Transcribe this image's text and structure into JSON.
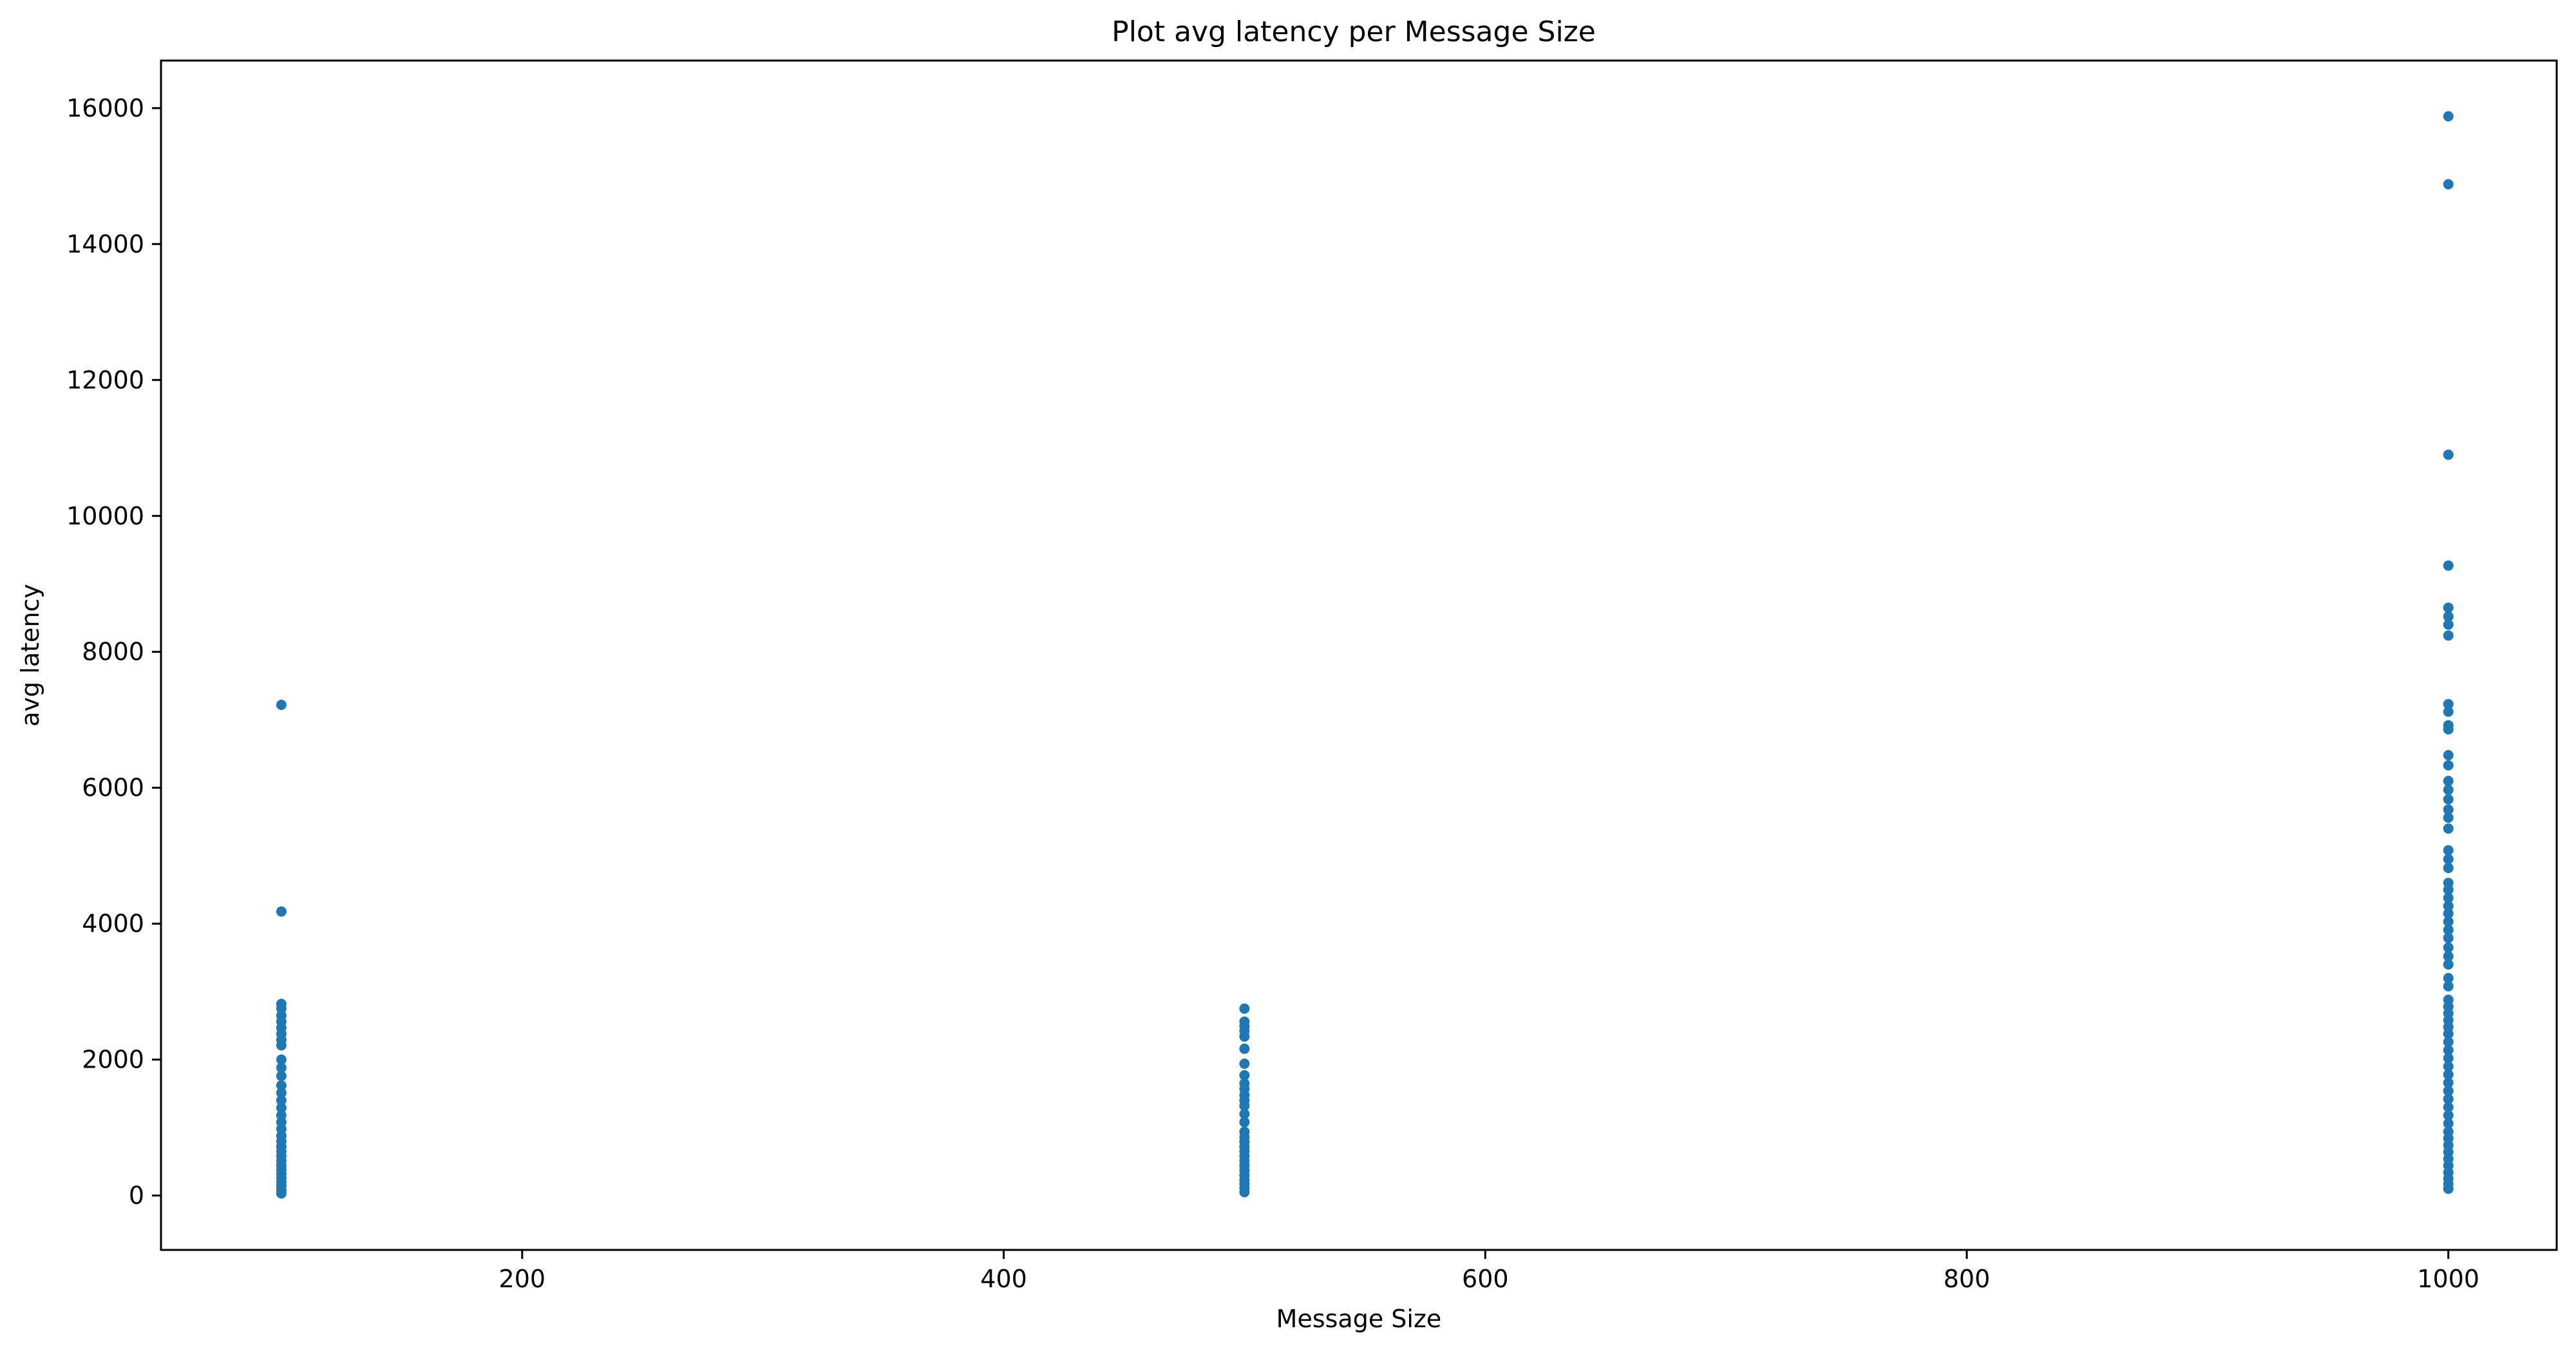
{
  "chart_data": {
    "type": "scatter",
    "title": "Plot avg latency per Message Size",
    "xlabel": "Message Size",
    "ylabel": "avg latency",
    "xlim": [
      50,
      1045
    ],
    "ylim": [
      -800,
      16700
    ],
    "xticks": [
      200,
      400,
      600,
      800,
      1000
    ],
    "xtick_labels": [
      "200",
      "400",
      "600",
      "800",
      "1000"
    ],
    "yticks": [
      0,
      2000,
      4000,
      6000,
      8000,
      10000,
      12000,
      14000,
      16000
    ],
    "ytick_labels": [
      "0",
      "2000",
      "4000",
      "6000",
      "8000",
      "10000",
      "12000",
      "14000",
      "16000"
    ],
    "grid": false,
    "color": "#1f77b4",
    "series": [
      {
        "points": [
          {
            "x": 100,
            "y": 7220
          },
          {
            "x": 100,
            "y": 4180
          },
          {
            "x": 100,
            "y": 2820
          },
          {
            "x": 100,
            "y": 2750
          },
          {
            "x": 100,
            "y": 2650
          },
          {
            "x": 100,
            "y": 2560
          },
          {
            "x": 100,
            "y": 2470
          },
          {
            "x": 100,
            "y": 2380
          },
          {
            "x": 100,
            "y": 2290
          },
          {
            "x": 100,
            "y": 2210
          },
          {
            "x": 100,
            "y": 2000
          },
          {
            "x": 100,
            "y": 1880
          },
          {
            "x": 100,
            "y": 1760
          },
          {
            "x": 100,
            "y": 1620
          },
          {
            "x": 100,
            "y": 1510
          },
          {
            "x": 100,
            "y": 1400
          },
          {
            "x": 100,
            "y": 1290
          },
          {
            "x": 100,
            "y": 1180
          },
          {
            "x": 100,
            "y": 1080
          },
          {
            "x": 100,
            "y": 980
          },
          {
            "x": 100,
            "y": 880
          },
          {
            "x": 100,
            "y": 800
          },
          {
            "x": 100,
            "y": 720
          },
          {
            "x": 100,
            "y": 650
          },
          {
            "x": 100,
            "y": 580
          },
          {
            "x": 100,
            "y": 510
          },
          {
            "x": 100,
            "y": 440
          },
          {
            "x": 100,
            "y": 380
          },
          {
            "x": 100,
            "y": 320
          },
          {
            "x": 100,
            "y": 260
          },
          {
            "x": 100,
            "y": 200
          },
          {
            "x": 100,
            "y": 140
          },
          {
            "x": 100,
            "y": 80
          },
          {
            "x": 100,
            "y": 30
          },
          {
            "x": 500,
            "y": 2750
          },
          {
            "x": 500,
            "y": 2560
          },
          {
            "x": 500,
            "y": 2490
          },
          {
            "x": 500,
            "y": 2420
          },
          {
            "x": 500,
            "y": 2340
          },
          {
            "x": 500,
            "y": 2160
          },
          {
            "x": 500,
            "y": 1940
          },
          {
            "x": 500,
            "y": 1770
          },
          {
            "x": 500,
            "y": 1650
          },
          {
            "x": 500,
            "y": 1570
          },
          {
            "x": 500,
            "y": 1480
          },
          {
            "x": 500,
            "y": 1400
          },
          {
            "x": 500,
            "y": 1320
          },
          {
            "x": 500,
            "y": 1200
          },
          {
            "x": 500,
            "y": 1080
          },
          {
            "x": 500,
            "y": 940
          },
          {
            "x": 500,
            "y": 860
          },
          {
            "x": 500,
            "y": 790
          },
          {
            "x": 500,
            "y": 720
          },
          {
            "x": 500,
            "y": 650
          },
          {
            "x": 500,
            "y": 580
          },
          {
            "x": 500,
            "y": 510
          },
          {
            "x": 500,
            "y": 440
          },
          {
            "x": 500,
            "y": 370
          },
          {
            "x": 500,
            "y": 300
          },
          {
            "x": 500,
            "y": 230
          },
          {
            "x": 500,
            "y": 170
          },
          {
            "x": 500,
            "y": 110
          },
          {
            "x": 500,
            "y": 50
          },
          {
            "x": 1000,
            "y": 15880
          },
          {
            "x": 1000,
            "y": 14880
          },
          {
            "x": 1000,
            "y": 10900
          },
          {
            "x": 1000,
            "y": 9270
          },
          {
            "x": 1000,
            "y": 8650
          },
          {
            "x": 1000,
            "y": 8520
          },
          {
            "x": 1000,
            "y": 8400
          },
          {
            "x": 1000,
            "y": 8240
          },
          {
            "x": 1000,
            "y": 7230
          },
          {
            "x": 1000,
            "y": 7120
          },
          {
            "x": 1000,
            "y": 6920
          },
          {
            "x": 1000,
            "y": 6860
          },
          {
            "x": 1000,
            "y": 6480
          },
          {
            "x": 1000,
            "y": 6330
          },
          {
            "x": 1000,
            "y": 6100
          },
          {
            "x": 1000,
            "y": 5970
          },
          {
            "x": 1000,
            "y": 5830
          },
          {
            "x": 1000,
            "y": 5680
          },
          {
            "x": 1000,
            "y": 5560
          },
          {
            "x": 1000,
            "y": 5400
          },
          {
            "x": 1000,
            "y": 5080
          },
          {
            "x": 1000,
            "y": 4950
          },
          {
            "x": 1000,
            "y": 4820
          },
          {
            "x": 1000,
            "y": 4600
          },
          {
            "x": 1000,
            "y": 4500
          },
          {
            "x": 1000,
            "y": 4380
          },
          {
            "x": 1000,
            "y": 4260
          },
          {
            "x": 1000,
            "y": 4150
          },
          {
            "x": 1000,
            "y": 4030
          },
          {
            "x": 1000,
            "y": 3910
          },
          {
            "x": 1000,
            "y": 3790
          },
          {
            "x": 1000,
            "y": 3650
          },
          {
            "x": 1000,
            "y": 3520
          },
          {
            "x": 1000,
            "y": 3400
          },
          {
            "x": 1000,
            "y": 3200
          },
          {
            "x": 1000,
            "y": 3080
          },
          {
            "x": 1000,
            "y": 2880
          },
          {
            "x": 1000,
            "y": 2780
          },
          {
            "x": 1000,
            "y": 2680
          },
          {
            "x": 1000,
            "y": 2580
          },
          {
            "x": 1000,
            "y": 2480
          },
          {
            "x": 1000,
            "y": 2380
          },
          {
            "x": 1000,
            "y": 2260
          },
          {
            "x": 1000,
            "y": 2140
          },
          {
            "x": 1000,
            "y": 2020
          },
          {
            "x": 1000,
            "y": 1900
          },
          {
            "x": 1000,
            "y": 1780
          },
          {
            "x": 1000,
            "y": 1660
          },
          {
            "x": 1000,
            "y": 1540
          },
          {
            "x": 1000,
            "y": 1420
          },
          {
            "x": 1000,
            "y": 1300
          },
          {
            "x": 1000,
            "y": 1180
          },
          {
            "x": 1000,
            "y": 1060
          },
          {
            "x": 1000,
            "y": 940
          },
          {
            "x": 1000,
            "y": 840
          },
          {
            "x": 1000,
            "y": 740
          },
          {
            "x": 1000,
            "y": 640
          },
          {
            "x": 1000,
            "y": 540
          },
          {
            "x": 1000,
            "y": 440
          },
          {
            "x": 1000,
            "y": 340
          },
          {
            "x": 1000,
            "y": 250
          },
          {
            "x": 1000,
            "y": 170
          },
          {
            "x": 1000,
            "y": 100
          }
        ]
      }
    ]
  }
}
